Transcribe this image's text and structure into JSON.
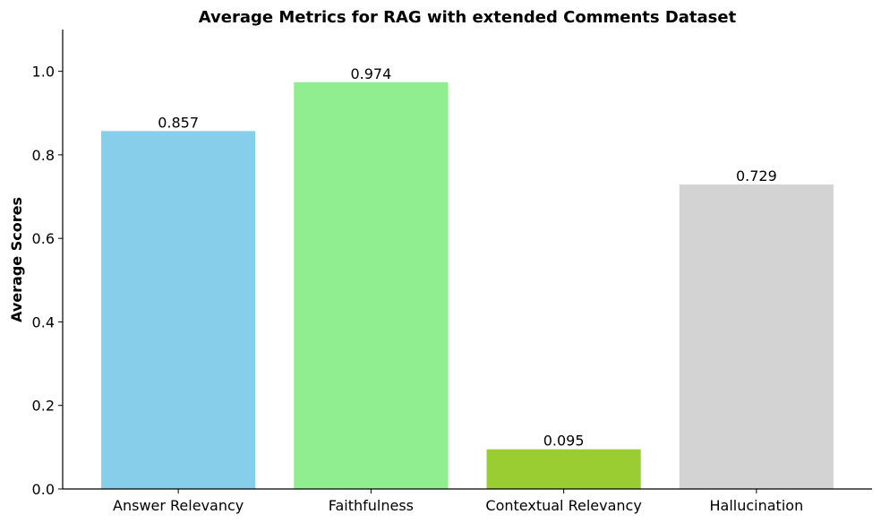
{
  "chart_data": {
    "type": "bar",
    "title": "Average Metrics for RAG with extended Comments Dataset",
    "xlabel": "",
    "ylabel": "Average Scores",
    "categories": [
      "Answer Relevancy",
      "Faithfulness",
      "Contextual Relevancy",
      "Hallucination"
    ],
    "values": [
      0.857,
      0.974,
      0.095,
      0.729
    ],
    "value_labels": [
      "0.857",
      "0.974",
      "0.095",
      "0.729"
    ],
    "colors": [
      "#87CEEB",
      "#90EE90",
      "#9ACD32",
      "#D3D3D3"
    ],
    "ylim": [
      0,
      1.1
    ],
    "yticks": [
      0.0,
      0.2,
      0.4,
      0.6,
      0.8,
      1.0
    ],
    "ytick_labels": [
      "0.0",
      "0.2",
      "0.4",
      "0.6",
      "0.8",
      "1.0"
    ],
    "grid": false,
    "legend": "none"
  }
}
